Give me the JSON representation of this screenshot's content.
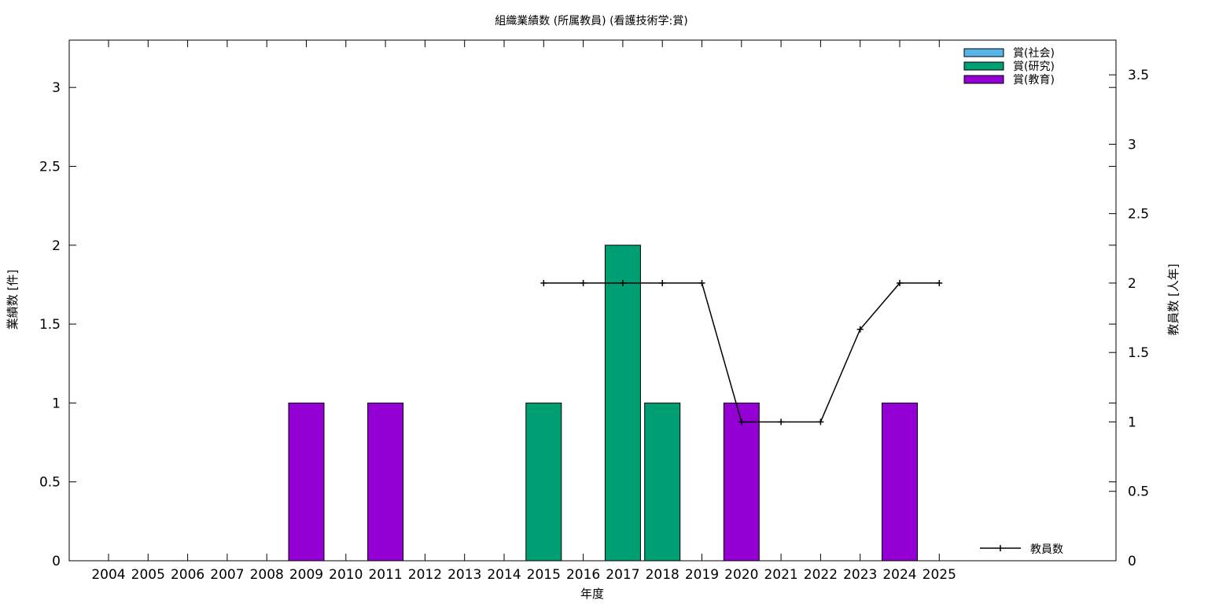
{
  "chart_data": {
    "type": "bar",
    "title": "組織業績数 (所属教員) (看護技術学:賞)",
    "xlabel": "年度",
    "ylabel": "業績数 [件]",
    "y2label": "教員数 [人年]",
    "categories": [
      "2004",
      "2005",
      "2006",
      "2007",
      "2008",
      "2009",
      "2010",
      "2011",
      "2012",
      "2013",
      "2014",
      "2015",
      "2016",
      "2017",
      "2018",
      "2019",
      "2020",
      "2021",
      "2022",
      "2023",
      "2024",
      "2025"
    ],
    "ylim": [
      0,
      3.3
    ],
    "y2lim": [
      0,
      3.75
    ],
    "yticks": [
      "0",
      "0.5",
      "1",
      "1.5",
      "2",
      "2.5",
      "3"
    ],
    "y2ticks": [
      "0",
      "0.5",
      "1",
      "1.5",
      "2",
      "2.5",
      "3",
      "3.5"
    ],
    "grid": false,
    "legend_position": "top-right",
    "series": [
      {
        "name": "賞(社会)",
        "color": "#56b4e9",
        "values": [
          0,
          0,
          0,
          0,
          0,
          0,
          0,
          0,
          0,
          0,
          0,
          0,
          0,
          0,
          0,
          0,
          0,
          0,
          0,
          0,
          0,
          0
        ]
      },
      {
        "name": "賞(研究)",
        "color": "#009e73",
        "values": [
          0,
          0,
          0,
          0,
          0,
          0,
          0,
          0,
          0,
          0,
          0,
          1,
          0,
          2,
          1,
          0,
          0,
          0,
          0,
          0,
          0,
          0
        ]
      },
      {
        "name": "賞(教育)",
        "color": "#9400d3",
        "values": [
          0,
          0,
          0,
          0,
          0,
          1,
          0,
          1,
          0,
          0,
          0,
          0,
          0,
          0,
          0,
          0,
          1,
          0,
          0,
          0,
          1,
          0
        ]
      }
    ],
    "line_series": {
      "name": "教員数",
      "color": "#000000",
      "axis": "y2",
      "x": [
        "2015",
        "2016",
        "2017",
        "2018",
        "2019",
        "2020",
        "2021",
        "2022",
        "2023",
        "2024",
        "2025"
      ],
      "values": [
        2,
        2,
        2,
        2,
        2,
        1,
        1,
        1,
        1.667,
        2,
        2
      ]
    }
  }
}
